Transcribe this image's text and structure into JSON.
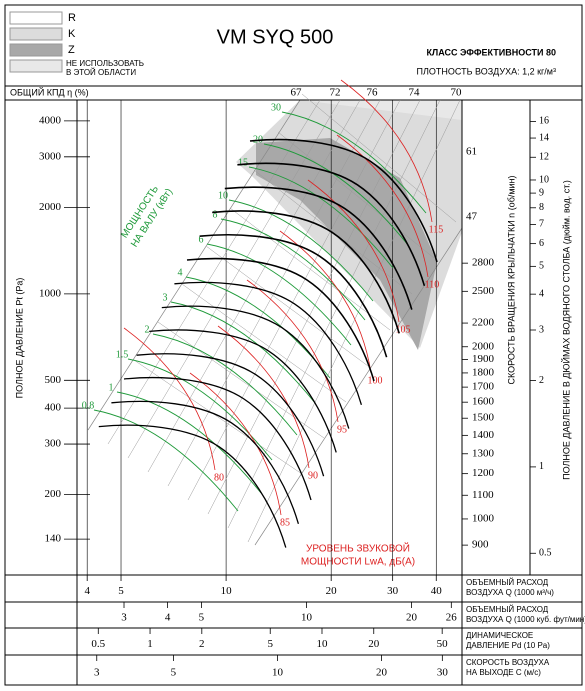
{
  "title": "VM SYQ 500",
  "legend": [
    "R",
    "K",
    "Z"
  ],
  "no_use_note": [
    "НЕ ИСПОЛЬЗОВАТЬ",
    "В ЭТОЙ ОБЛАСТИ"
  ],
  "efficiency_class": "КЛАСС ЭФФЕКТИВНОСТИ 80",
  "air_density": "ПЛОТНОСТЬ ВОЗДУХА: 1,2 кг/м³",
  "efficiency": {
    "label": "ОБЩИЙ КПД η (%)",
    "values": [
      67,
      72,
      76,
      74,
      70
    ]
  },
  "pressure_axis": {
    "label": "ПОЛНОЕ ДАВЛЕНИЕ Pt (Pa)",
    "scale": "log",
    "lim": [
      105,
      4730
    ],
    "ticks": [
      140,
      200,
      300,
      400,
      500,
      1000,
      2000,
      3000,
      4000
    ]
  },
  "rpm_axis": {
    "label": "СКОРОСТЬ ВРАЩЕНИЯ КРЫЛЬЧАТКИ n (об/мин)",
    "scale": "log",
    "lim": [
      798,
      5400
    ],
    "ticks": [
      900,
      1000,
      1100,
      1200,
      1300,
      1400,
      1500,
      1600,
      1700,
      1800,
      1900,
      2000,
      2200,
      2500,
      2800
    ]
  },
  "rpm_extra_labels": [
    61,
    47
  ],
  "inch_axis": {
    "label": "ПОЛНОЕ ДАВЛЕНИЕ В ДЮЙМАХ ВОДЯНОГО СТОЛБА (дюйм. вод. ст.)",
    "scale": "log",
    "lim": [
      0.42,
      19.0
    ],
    "ticks": [
      0.5,
      1,
      2,
      3,
      4,
      5,
      6,
      7,
      8,
      9,
      10,
      12,
      14,
      16
    ]
  },
  "bottom_axes": [
    {
      "label": [
        "ОБЪЕМНЫЙ РАСХОД",
        "ВОЗДУХА Q (1000 м³/ч)"
      ],
      "scale": "log",
      "lim": [
        3.74,
        47.4
      ],
      "ticks": [
        4,
        5,
        10,
        20,
        30,
        40
      ]
    },
    {
      "label": [
        "ОБЪЕМНЫЙ РАСХОД",
        "ВОЗДУХА Q (1000 куб. фут/мин)"
      ],
      "scale": "log",
      "lim": [
        2.2,
        27.9
      ],
      "ticks": [
        3,
        4,
        5,
        10,
        20,
        26
      ]
    },
    {
      "label": [
        "ДИНАМИЧЕСКОЕ",
        "ДАВЛЕНИЕ Pd (10 Pa)"
      ],
      "scale": "log",
      "lim": [
        0.376,
        65.2
      ],
      "ticks": [
        0.5,
        1,
        2,
        5,
        10,
        20,
        50
      ]
    },
    {
      "label": [
        "СКОРОСТЬ ВОЗДУХА",
        "НА ВЫХОДЕ C (м/с)"
      ],
      "scale": "log",
      "lim": [
        2.63,
        34.2
      ],
      "ticks": [
        3,
        5,
        10,
        20,
        30
      ]
    }
  ],
  "power": {
    "title": [
      "МОЩНОСТЬ",
      "НА ВАЛУ (кВт)"
    ],
    "values": [
      30,
      20,
      15,
      10,
      8,
      6,
      4,
      3,
      2,
      1.5,
      1,
      0.8
    ]
  },
  "sound": {
    "title": [
      "УРОВЕНЬ ЗВУКОВОЙ",
      "МОЩНОСТИ LwA, дБ(A)"
    ],
    "values": [
      80,
      85,
      90,
      95,
      100,
      105,
      110,
      115
    ]
  }
}
